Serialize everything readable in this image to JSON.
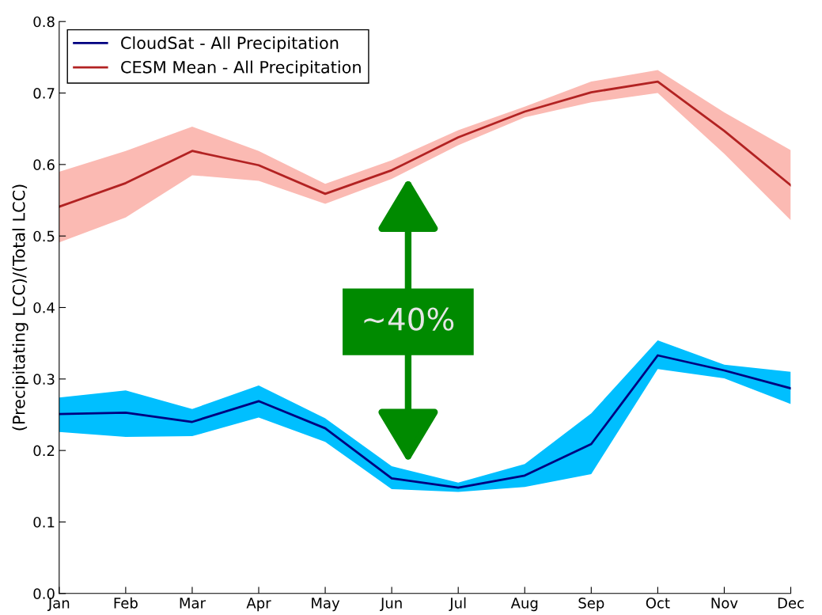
{
  "chart_data": {
    "type": "line",
    "ylabel": "(Precipitating LCC)/(Total LCC)",
    "categories": [
      "Jan",
      "Feb",
      "Mar",
      "Apr",
      "May",
      "Jun",
      "Jul",
      "Aug",
      "Sep",
      "Oct",
      "Nov",
      "Dec"
    ],
    "series": [
      {
        "name": "CloudSat - All Precipitation",
        "color": "#000080",
        "values": [
          0.251,
          0.253,
          0.24,
          0.269,
          0.231,
          0.161,
          0.148,
          0.165,
          0.209,
          0.333,
          0.312,
          0.287
        ],
        "lower": [
          0.226,
          0.219,
          0.22,
          0.246,
          0.212,
          0.146,
          0.142,
          0.149,
          0.167,
          0.314,
          0.301,
          0.265
        ],
        "upper": [
          0.274,
          0.284,
          0.258,
          0.291,
          0.245,
          0.178,
          0.155,
          0.181,
          0.252,
          0.354,
          0.32,
          0.31
        ]
      },
      {
        "name": "CESM Mean - All Precipitation",
        "color": "#b22222",
        "values": [
          0.541,
          0.574,
          0.619,
          0.599,
          0.559,
          0.592,
          0.638,
          0.674,
          0.701,
          0.716,
          0.647,
          0.571
        ],
        "lower": [
          0.491,
          0.526,
          0.585,
          0.577,
          0.545,
          0.58,
          0.627,
          0.666,
          0.687,
          0.7,
          0.615,
          0.522
        ],
        "upper": [
          0.59,
          0.619,
          0.653,
          0.619,
          0.573,
          0.606,
          0.648,
          0.681,
          0.716,
          0.732,
          0.673,
          0.62
        ]
      }
    ],
    "ylim": [
      0,
      0.8
    ],
    "yticks": [
      {
        "value": 0,
        "label": "0.0"
      },
      0.1,
      0.2,
      0.3,
      0.4,
      0.5,
      0.6,
      0.7,
      0.8
    ],
    "annotations": [
      "~40%"
    ],
    "legend": "top left",
    "grid": false
  }
}
